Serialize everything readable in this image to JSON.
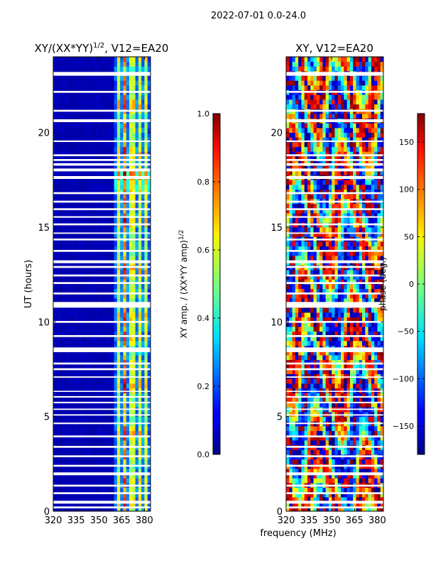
{
  "suptitle": "2022-07-01 0.0-24.0",
  "xlabel_shared": "frequency (MHz)",
  "chart_data": [
    {
      "type": "heatmap",
      "title": "XY/(XX*YY)",
      "title_exponent": "1/2",
      "title_suffix": ", V12=EA20",
      "xlabel": "",
      "ylabel": "UT (hours)",
      "xlim": [
        320,
        384
      ],
      "ylim": [
        0,
        24
      ],
      "xticks": [
        320,
        335,
        350,
        365,
        380
      ],
      "yticks": [
        0,
        5,
        10,
        15,
        20
      ],
      "colormap": "jet",
      "colorbar": {
        "label": "XY amp. / (XX*YY amp)",
        "label_exponent": "1/2",
        "vmin": 0.0,
        "vmax": 1.0,
        "ticks": [
          0.0,
          0.2,
          0.4,
          0.6,
          0.8,
          1.0
        ],
        "tick_labels": [
          "0.0",
          "0.2",
          "0.4",
          "0.6",
          "0.8",
          "1.0"
        ]
      },
      "features": {
        "background_value": 0.05,
        "active_band_mhz": [
          361,
          383
        ],
        "active_channel_centers_mhz": [
          363.5,
          367,
          370.5,
          373.5,
          376.5,
          380.5
        ],
        "active_value_range": [
          0.3,
          0.7
        ]
      }
    },
    {
      "type": "heatmap",
      "title": "XY, V12=EA20",
      "xlabel": "frequency (MHz)",
      "ylabel": "",
      "xlim": [
        320,
        384
      ],
      "ylim": [
        0,
        24
      ],
      "xticks": [
        320,
        335,
        350,
        365,
        380
      ],
      "yticks": [
        0,
        5,
        10,
        15,
        20
      ],
      "colormap": "jet",
      "colorbar": {
        "label": "phase (deg.)",
        "vmin": -180,
        "vmax": 180,
        "ticks": [
          -150,
          -100,
          -50,
          0,
          50,
          100,
          150
        ],
        "tick_labels": [
          "−150",
          "−100",
          "−50",
          "0",
          "50",
          "100",
          "150"
        ]
      },
      "features": {
        "value_range_deg": [
          -180,
          180
        ]
      }
    }
  ],
  "blank_intervals_ut_hours": [
    [
      0.15,
      0.25
    ],
    [
      0.4,
      0.55
    ],
    [
      0.9,
      1.0
    ],
    [
      1.3,
      1.4
    ],
    [
      1.9,
      2.05
    ],
    [
      2.35,
      2.45
    ],
    [
      2.85,
      2.95
    ],
    [
      3.35,
      3.45
    ],
    [
      3.9,
      4.0
    ],
    [
      4.6,
      4.68
    ],
    [
      5.05,
      5.12
    ],
    [
      5.35,
      5.42
    ],
    [
      5.7,
      5.78
    ],
    [
      6.0,
      6.08
    ],
    [
      6.3,
      6.36
    ],
    [
      7.05,
      7.12
    ],
    [
      7.45,
      7.55
    ],
    [
      7.75,
      7.85
    ],
    [
      8.4,
      8.65
    ],
    [
      9.2,
      9.3
    ],
    [
      9.95,
      10.05
    ],
    [
      10.75,
      11.05
    ],
    [
      11.45,
      11.55
    ],
    [
      12.0,
      12.1
    ],
    [
      12.4,
      12.5
    ],
    [
      12.85,
      12.95
    ],
    [
      13.1,
      13.25
    ],
    [
      13.7,
      13.8
    ],
    [
      14.3,
      14.4
    ],
    [
      14.65,
      14.72
    ],
    [
      15.1,
      15.2
    ],
    [
      15.5,
      15.58
    ],
    [
      15.9,
      16.0
    ],
    [
      16.3,
      16.4
    ],
    [
      16.75,
      16.85
    ],
    [
      17.55,
      17.7
    ],
    [
      17.95,
      18.1
    ],
    [
      18.25,
      18.38
    ],
    [
      18.5,
      18.6
    ],
    [
      18.75,
      18.85
    ],
    [
      19.5,
      19.58
    ],
    [
      20.55,
      20.7
    ],
    [
      21.1,
      21.2
    ],
    [
      22.1,
      22.2
    ],
    [
      23.0,
      23.2
    ]
  ]
}
